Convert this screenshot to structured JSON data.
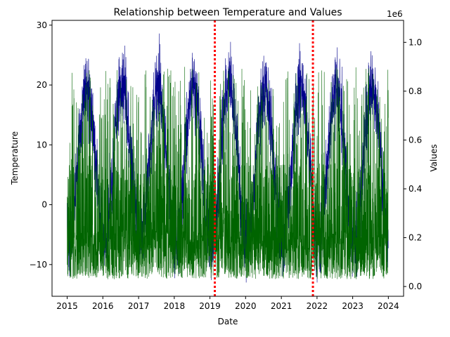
{
  "chart_data": {
    "type": "line",
    "title": "Relationship between Temperature and Values",
    "xlabel": "Date",
    "ylabel_left": "Temperature",
    "ylabel_right": "Values",
    "right_axis_offset_label": "1e6",
    "x_range": [
      "2014-07-30",
      "2024-06-05"
    ],
    "x_ticks": [
      "2015",
      "2016",
      "2017",
      "2018",
      "2019",
      "2020",
      "2021",
      "2022",
      "2023",
      "2024"
    ],
    "y_left_range": [
      -15.3,
      30.8
    ],
    "y_left_ticks": [
      "−10",
      "0",
      "10",
      "20",
      "30"
    ],
    "y_right_range": [
      -40000,
      1090000
    ],
    "y_right_ticks": [
      "0.0",
      "0.2",
      "0.4",
      "0.6",
      "0.8",
      "1.0"
    ],
    "grid": false,
    "series": [
      {
        "axis": "left",
        "color": "#00008b",
        "date_range": [
          "2015-01-01",
          "2023-12-31"
        ],
        "seasonal_mean": 7,
        "seasonal_amplitude": 13,
        "seasonal_peak_month": 7,
        "noise": 3,
        "ymin": -13,
        "ymax": 28.6
      },
      {
        "axis": "right",
        "color": "#006400",
        "date_range": [
          "2015-01-01",
          "2023-12-31"
        ],
        "typical_low": 30000,
        "typical_high": 900000,
        "ymin": 20000,
        "ymax": 1040000
      }
    ],
    "vlines": [
      {
        "x": "2019-02-20",
        "color": "#ff0000",
        "style": "dotted"
      },
      {
        "x": "2021-11-20",
        "color": "#ff0000",
        "style": "dotted"
      }
    ]
  }
}
